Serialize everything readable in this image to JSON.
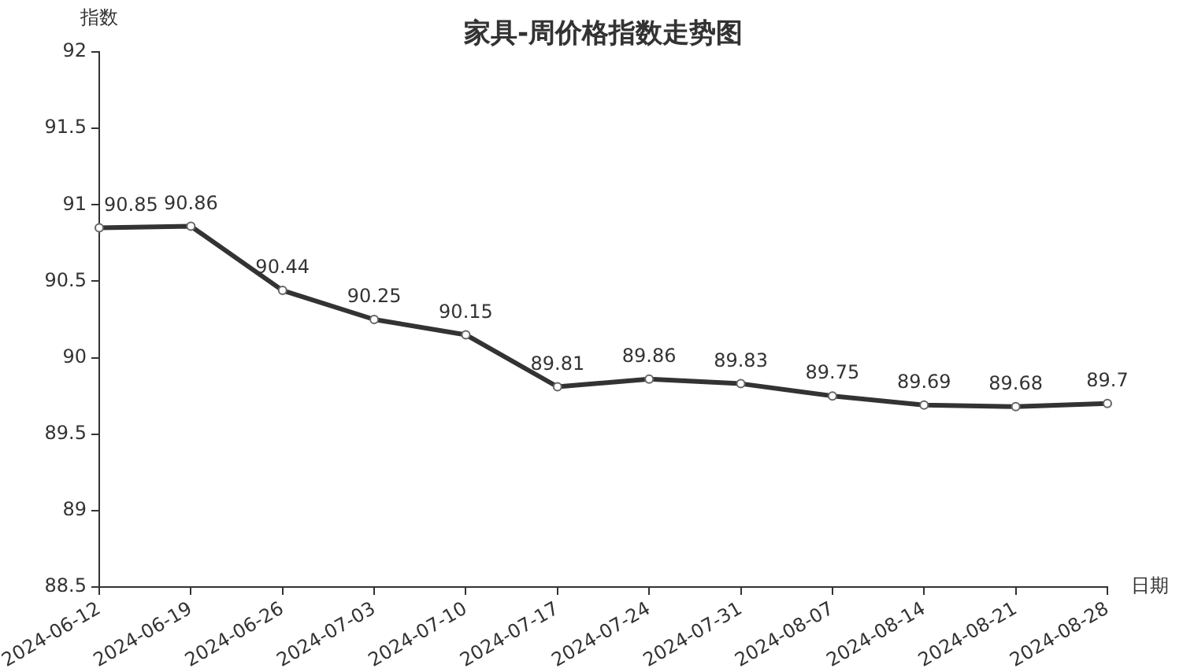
{
  "chart_data": {
    "type": "line",
    "title": "家具-周价格指数走势图",
    "xlabel": "日期",
    "ylabel": "指数",
    "categories": [
      "2024-06-12",
      "2024-06-19",
      "2024-06-26",
      "2024-07-03",
      "2024-07-10",
      "2024-07-17",
      "2024-07-24",
      "2024-07-31",
      "2024-08-07",
      "2024-08-14",
      "2024-08-21",
      "2024-08-28"
    ],
    "series": [
      {
        "color": "#333333",
        "values": [
          90.85,
          90.86,
          90.44,
          90.25,
          90.15,
          89.81,
          89.86,
          89.83,
          89.75,
          89.69,
          89.68,
          89.7
        ]
      }
    ],
    "ylim": [
      88.5,
      92
    ],
    "yticks": [
      88.5,
      89,
      89.5,
      90,
      90.5,
      91,
      91.5,
      92
    ],
    "grid": false,
    "legend": false,
    "marker": "circle",
    "line_style": "solid",
    "data_labels": true
  }
}
